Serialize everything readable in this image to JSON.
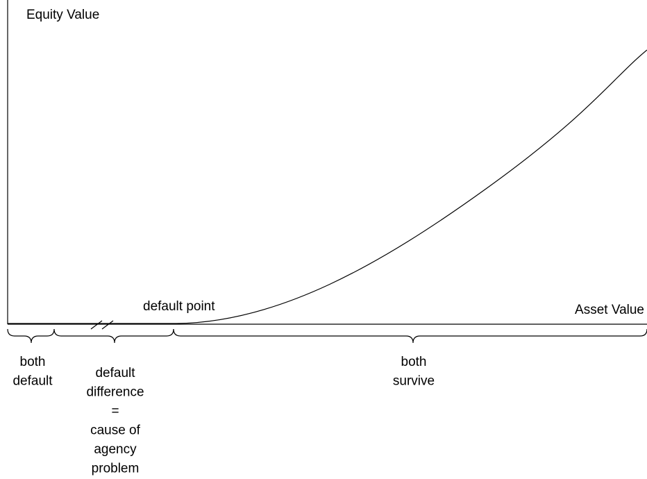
{
  "axes": {
    "y_label": "Equity Value",
    "x_label": "Asset Value"
  },
  "annotations": {
    "default_point": "default point"
  },
  "regions": [
    {
      "lines": [
        "both",
        "default"
      ]
    },
    {
      "lines": [
        "default",
        "difference",
        "=",
        "cause of",
        "agency",
        "problem"
      ]
    },
    {
      "lines": [
        "both",
        "survive"
      ]
    }
  ]
}
